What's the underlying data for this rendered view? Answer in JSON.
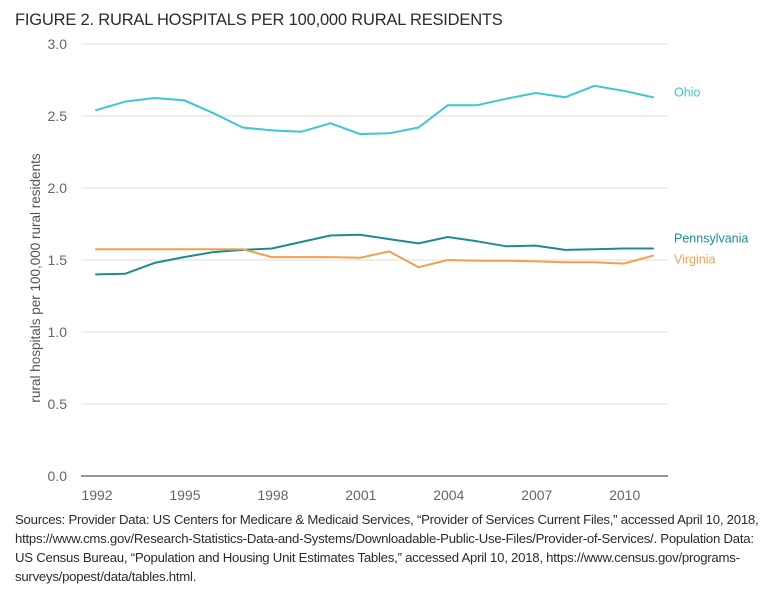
{
  "chart_data": {
    "type": "line",
    "title": "FIGURE 2. RURAL HOSPITALS PER 100,000 RURAL RESIDENTS",
    "xlabel": "",
    "ylabel": "rural hospitals per 100,000 rural residents",
    "x": [
      1992,
      1993,
      1994,
      1995,
      1996,
      1997,
      1998,
      1999,
      2000,
      2001,
      2002,
      2003,
      2004,
      2005,
      2006,
      2007,
      2008,
      2009,
      2010,
      2011
    ],
    "xlim": [
      1992,
      2011
    ],
    "xticks": [
      "1992",
      "1995",
      "1998",
      "2001",
      "2004",
      "2007",
      "2010"
    ],
    "xtick_values": [
      1992,
      1995,
      1998,
      2001,
      2004,
      2007,
      2010
    ],
    "ylim": [
      0,
      3.0
    ],
    "yticks": [
      "0.0",
      "0.5",
      "1.0",
      "1.5",
      "2.0",
      "2.5",
      "3.0"
    ],
    "ytick_values": [
      0,
      0.5,
      1.0,
      1.5,
      2.0,
      2.5,
      3.0
    ],
    "grid": true,
    "legend": "inline-right",
    "series": [
      {
        "name": "Ohio",
        "color": "#3ec6d4",
        "values": [
          2.54,
          2.6,
          2.625,
          2.61,
          2.52,
          2.42,
          2.4,
          2.39,
          2.45,
          2.375,
          2.38,
          2.42,
          2.575,
          2.575,
          2.62,
          2.66,
          2.63,
          2.71,
          2.675,
          2.63
        ]
      },
      {
        "name": "Pennsylvania",
        "color": "#1f8a96",
        "values": [
          1.4,
          1.405,
          1.48,
          1.52,
          1.555,
          1.57,
          1.58,
          1.625,
          1.67,
          1.675,
          1.645,
          1.615,
          1.66,
          1.63,
          1.595,
          1.6,
          1.57,
          1.575,
          1.58,
          1.58
        ]
      },
      {
        "name": "Virginia",
        "color": "#f0a050",
        "values": [
          1.575,
          1.575,
          1.575,
          1.575,
          1.575,
          1.575,
          1.52,
          1.52,
          1.52,
          1.515,
          1.56,
          1.45,
          1.5,
          1.495,
          1.495,
          1.49,
          1.485,
          1.485,
          1.475,
          1.53
        ]
      }
    ]
  },
  "sources_text": "Sources: Provider Data: US Centers for Medicare & Medicaid Services, “Provider of Services Current Files,” accessed April 10, 2018, https://www.cms.gov/Research-Statistics-Data-and-Systems/Downloadable-Public-Use-Files/Provider-of-Services/. Population Data: US Census Bureau, “Population and Housing Unit Estimates Tables,” accessed April 10, 2018, https://www.census.gov/programs-surveys/popest/data/tables.html."
}
